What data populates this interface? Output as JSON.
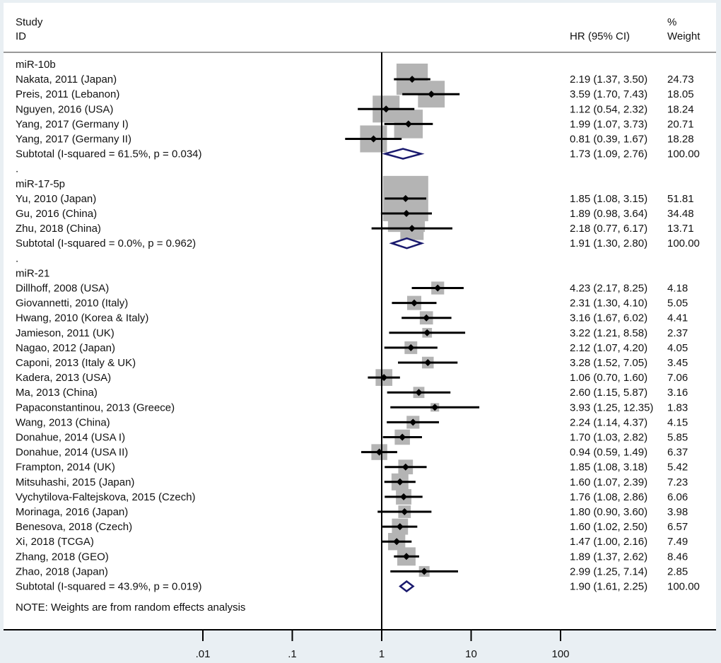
{
  "chart_data": {
    "type": "forest",
    "x_scale": "log",
    "xlim": [
      0.005,
      250
    ],
    "x_ticks": [
      ".01",
      ".1",
      "1",
      "10",
      "100"
    ],
    "x_tick_values": [
      0.01,
      0.1,
      1,
      10,
      100
    ],
    "reference_line": 1,
    "header": {
      "study": "Study",
      "id": "ID",
      "hr": "HR (95% CI)",
      "pct": "%",
      "weight": "Weight"
    },
    "groups": [
      {
        "name": "miR-10b",
        "studies": [
          {
            "label": "Nakata, 2011 (Japan)",
            "hr": 2.19,
            "lo": 1.37,
            "hi": 3.5,
            "ci_text": "2.19 (1.37, 3.50)",
            "weight": "24.73"
          },
          {
            "label": "Preis, 2011 (Lebanon)",
            "hr": 3.59,
            "lo": 1.7,
            "hi": 7.43,
            "ci_text": "3.59 (1.70, 7.43)",
            "weight": "18.05"
          },
          {
            "label": "Nguyen, 2016 (USA)",
            "hr": 1.12,
            "lo": 0.54,
            "hi": 2.32,
            "ci_text": "1.12 (0.54, 2.32)",
            "weight": "18.24"
          },
          {
            "label": "Yang, 2017 (Germany I)",
            "hr": 1.99,
            "lo": 1.07,
            "hi": 3.73,
            "ci_text": "1.99 (1.07, 3.73)",
            "weight": "20.71"
          },
          {
            "label": "Yang, 2017 (Germany II)",
            "hr": 0.81,
            "lo": 0.39,
            "hi": 1.67,
            "ci_text": "0.81 (0.39, 1.67)",
            "weight": "18.28"
          }
        ],
        "subtotal": {
          "label": "Subtotal  (I-squared = 61.5%, p = 0.034)",
          "hr": 1.73,
          "lo": 1.09,
          "hi": 2.76,
          "ci_text": "1.73 (1.09, 2.76)",
          "weight": "100.00"
        }
      },
      {
        "name": "miR-17-5p",
        "studies": [
          {
            "label": "Yu, 2010 (Japan)",
            "hr": 1.85,
            "lo": 1.08,
            "hi": 3.15,
            "ci_text": "1.85 (1.08, 3.15)",
            "weight": "51.81"
          },
          {
            "label": "Gu, 2016 (China)",
            "hr": 1.89,
            "lo": 0.98,
            "hi": 3.64,
            "ci_text": "1.89 (0.98, 3.64)",
            "weight": "34.48"
          },
          {
            "label": "Zhu, 2018 (China)",
            "hr": 2.18,
            "lo": 0.77,
            "hi": 6.17,
            "ci_text": "2.18 (0.77, 6.17)",
            "weight": "13.71"
          }
        ],
        "subtotal": {
          "label": "Subtotal  (I-squared = 0.0%, p = 0.962)",
          "hr": 1.91,
          "lo": 1.3,
          "hi": 2.8,
          "ci_text": "1.91 (1.30, 2.80)",
          "weight": "100.00"
        }
      },
      {
        "name": "miR-21",
        "studies": [
          {
            "label": "Dillhoff, 2008 (USA)",
            "hr": 4.23,
            "lo": 2.17,
            "hi": 8.25,
            "ci_text": "4.23 (2.17, 8.25)",
            "weight": "4.18"
          },
          {
            "label": "Giovannetti, 2010 (Italy)",
            "hr": 2.31,
            "lo": 1.3,
            "hi": 4.1,
            "ci_text": "2.31 (1.30, 4.10)",
            "weight": "5.05"
          },
          {
            "label": "Hwang, 2010 (Korea & Italy)",
            "hr": 3.16,
            "lo": 1.67,
            "hi": 6.02,
            "ci_text": "3.16 (1.67, 6.02)",
            "weight": "4.41"
          },
          {
            "label": "Jamieson, 2011 (UK)",
            "hr": 3.22,
            "lo": 1.21,
            "hi": 8.58,
            "ci_text": "3.22 (1.21, 8.58)",
            "weight": "2.37"
          },
          {
            "label": "Nagao, 2012 (Japan)",
            "hr": 2.12,
            "lo": 1.07,
            "hi": 4.2,
            "ci_text": "2.12 (1.07, 4.20)",
            "weight": "4.05"
          },
          {
            "label": "Caponi, 2013 (Italy & UK)",
            "hr": 3.28,
            "lo": 1.52,
            "hi": 7.05,
            "ci_text": "3.28 (1.52, 7.05)",
            "weight": "3.45"
          },
          {
            "label": "Kadera, 2013 (USA)",
            "hr": 1.06,
            "lo": 0.7,
            "hi": 1.6,
            "ci_text": "1.06 (0.70, 1.60)",
            "weight": "7.06"
          },
          {
            "label": "Ma, 2013 (China)",
            "hr": 2.6,
            "lo": 1.15,
            "hi": 5.87,
            "ci_text": "2.60 (1.15, 5.87)",
            "weight": "3.16"
          },
          {
            "label": "Papaconstantinou, 2013 (Greece)",
            "hr": 3.93,
            "lo": 1.25,
            "hi": 12.35,
            "ci_text": "3.93 (1.25, 12.35)",
            "weight": "1.83"
          },
          {
            "label": "Wang, 2013 (China)",
            "hr": 2.24,
            "lo": 1.14,
            "hi": 4.37,
            "ci_text": "2.24 (1.14, 4.37)",
            "weight": "4.15"
          },
          {
            "label": "Donahue, 2014 (USA I)",
            "hr": 1.7,
            "lo": 1.03,
            "hi": 2.82,
            "ci_text": "1.70 (1.03, 2.82)",
            "weight": "5.85"
          },
          {
            "label": "Donahue, 2014 (USA II)",
            "hr": 0.94,
            "lo": 0.59,
            "hi": 1.49,
            "ci_text": "0.94 (0.59, 1.49)",
            "weight": "6.37"
          },
          {
            "label": "Frampton, 2014 (UK)",
            "hr": 1.85,
            "lo": 1.08,
            "hi": 3.18,
            "ci_text": "1.85 (1.08, 3.18)",
            "weight": "5.42"
          },
          {
            "label": "Mitsuhashi, 2015 (Japan)",
            "hr": 1.6,
            "lo": 1.07,
            "hi": 2.39,
            "ci_text": "1.60 (1.07, 2.39)",
            "weight": "7.23"
          },
          {
            "label": "Vychytilova-Faltejskova, 2015 (Czech)",
            "hr": 1.76,
            "lo": 1.08,
            "hi": 2.86,
            "ci_text": "1.76 (1.08, 2.86)",
            "weight": "6.06"
          },
          {
            "label": "Morinaga, 2016 (Japan)",
            "hr": 1.8,
            "lo": 0.9,
            "hi": 3.6,
            "ci_text": "1.80 (0.90, 3.60)",
            "weight": "3.98"
          },
          {
            "label": "Benesova, 2018 (Czech)",
            "hr": 1.6,
            "lo": 1.02,
            "hi": 2.5,
            "ci_text": "1.60 (1.02, 2.50)",
            "weight": "6.57"
          },
          {
            "label": "Xi, 2018 (TCGA)",
            "hr": 1.47,
            "lo": 1.0,
            "hi": 2.16,
            "ci_text": "1.47 (1.00, 2.16)",
            "weight": "7.49"
          },
          {
            "label": "Zhang, 2018 (GEO)",
            "hr": 1.89,
            "lo": 1.37,
            "hi": 2.62,
            "ci_text": "1.89 (1.37, 2.62)",
            "weight": "8.46"
          },
          {
            "label": "Zhao, 2018 (Japan)",
            "hr": 2.99,
            "lo": 1.25,
            "hi": 7.14,
            "ci_text": "2.99 (1.25, 7.14)",
            "weight": "2.85"
          }
        ],
        "subtotal": {
          "label": "Subtotal  (I-squared = 43.9%, p = 0.019)",
          "hr": 1.9,
          "lo": 1.61,
          "hi": 2.25,
          "ci_text": "1.90 (1.61, 2.25)",
          "weight": "100.00"
        }
      }
    ],
    "separator": ".",
    "note": "NOTE: Weights are from random effects analysis",
    "colors": {
      "box": "#b4b4b4",
      "point": "#000000",
      "diamond": "#1a1a6e",
      "axis_area": "#e9eff3",
      "plot_bg": "#ffffff"
    }
  }
}
